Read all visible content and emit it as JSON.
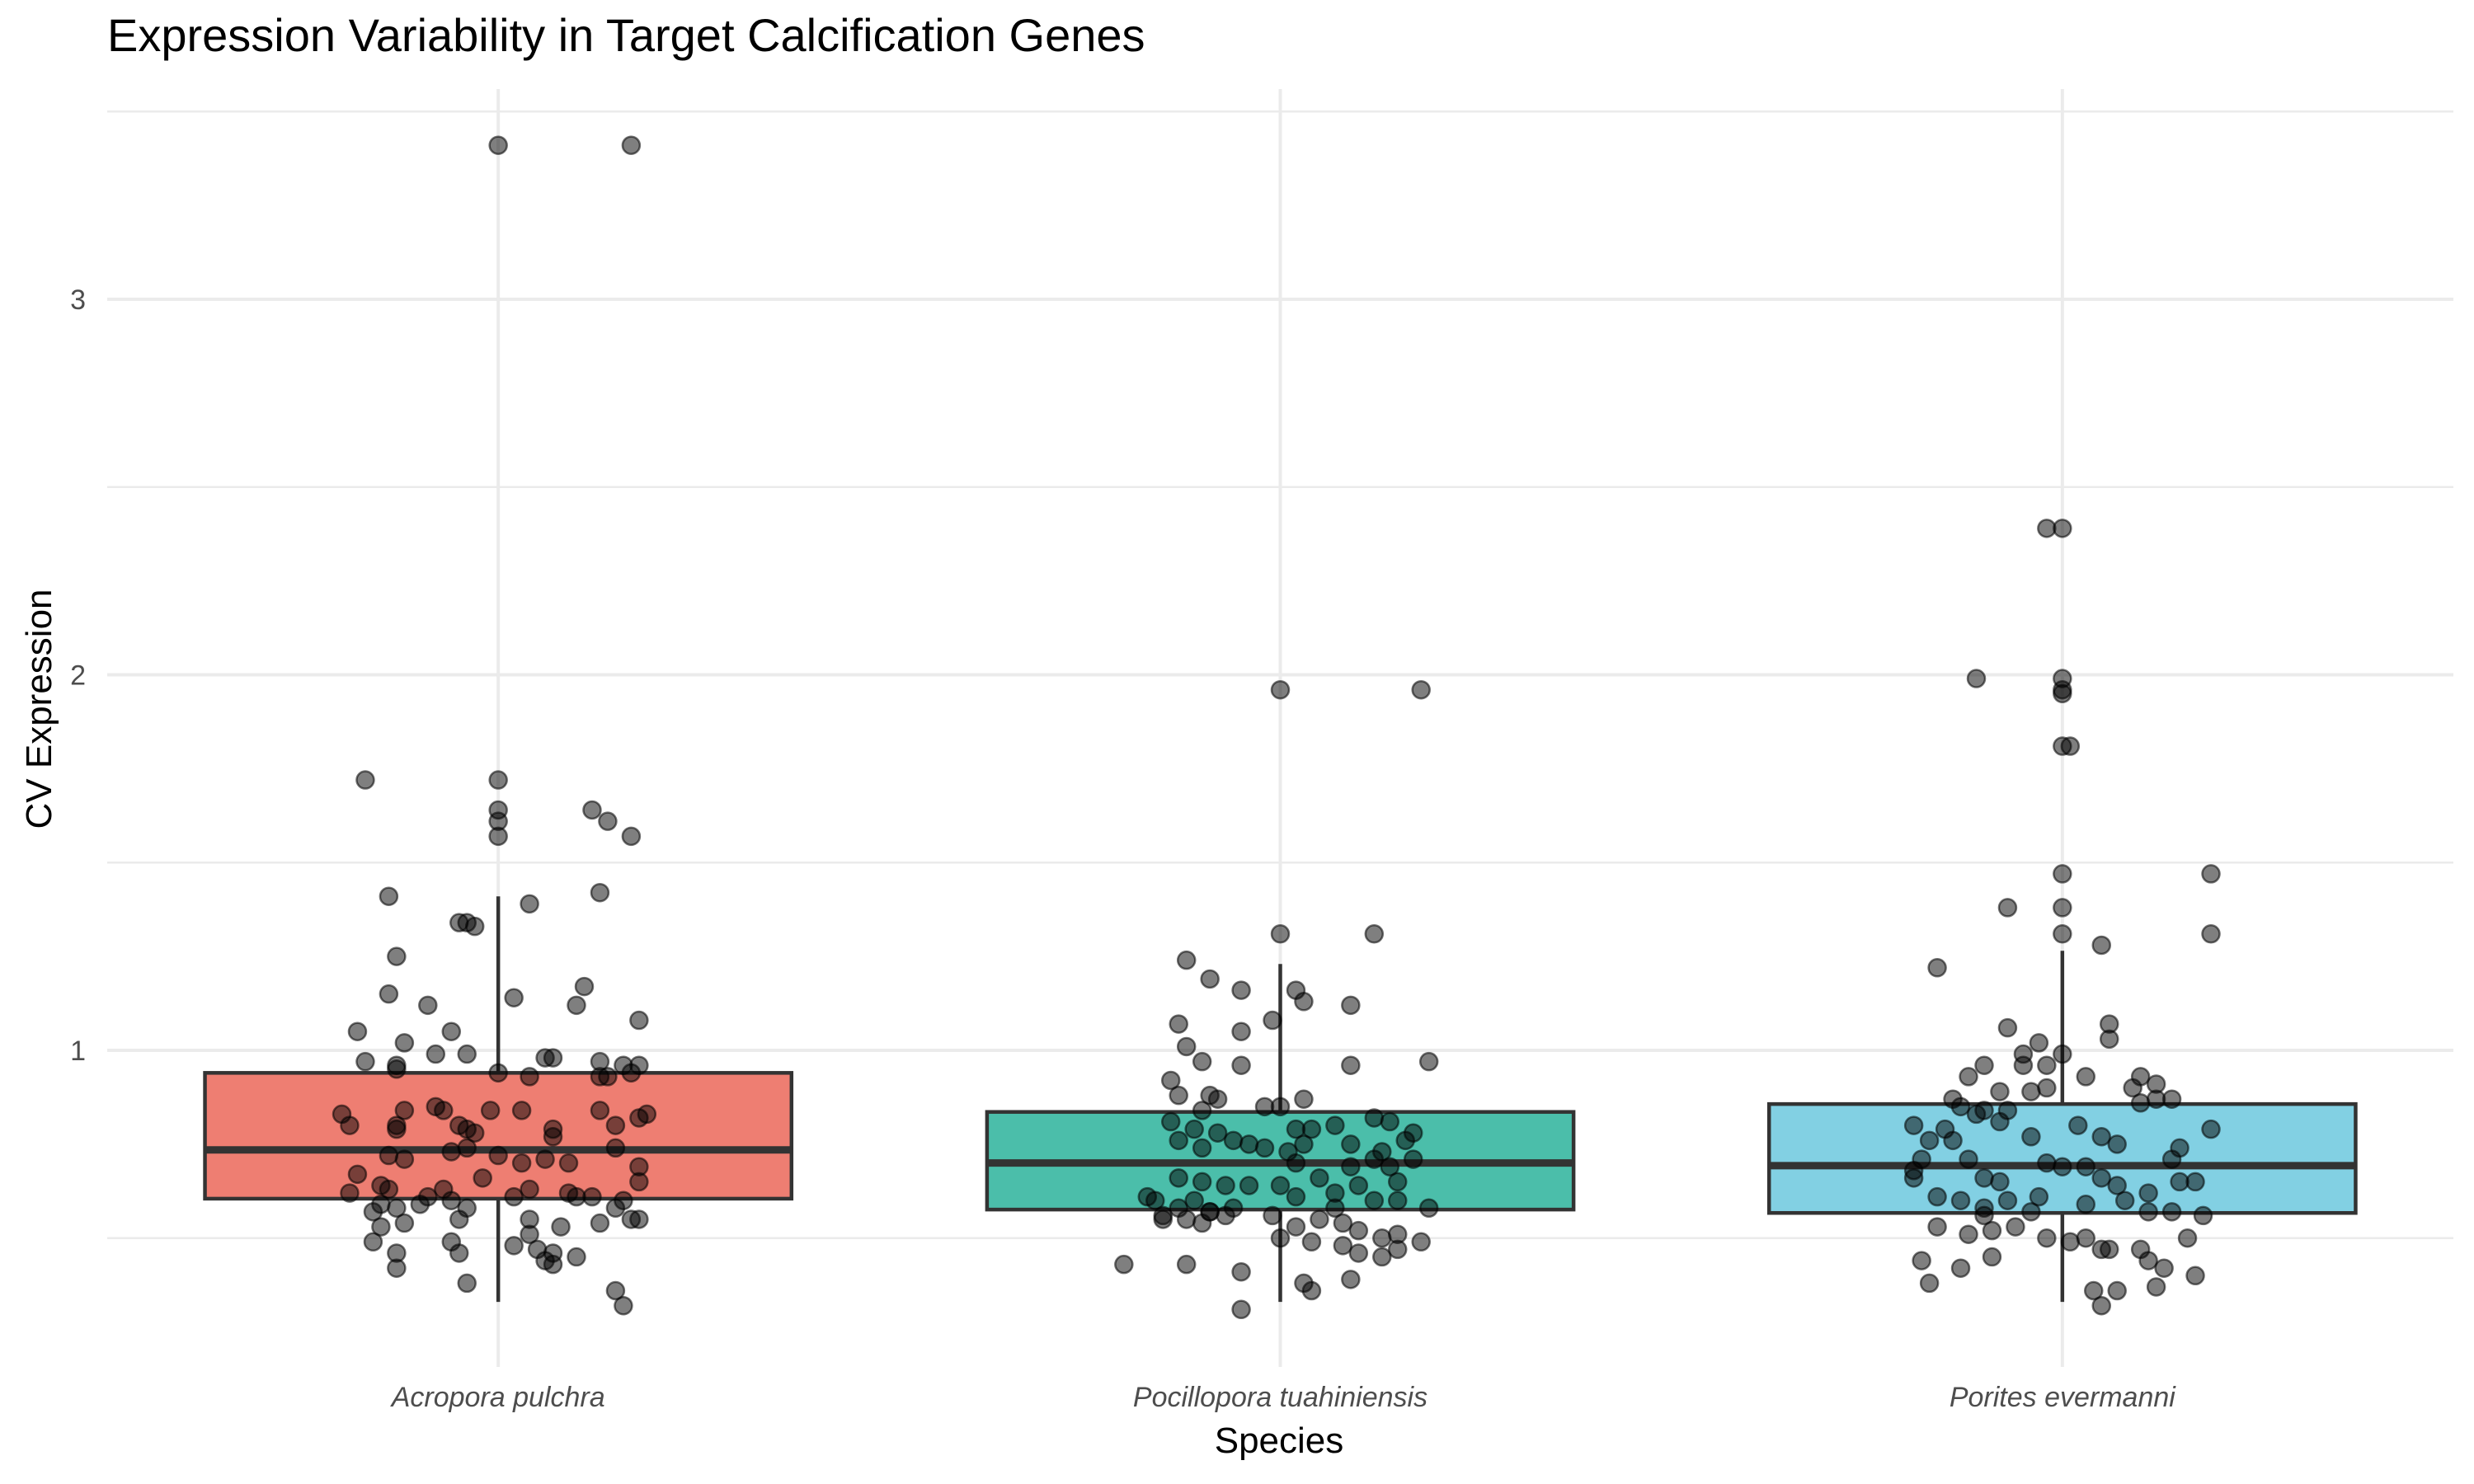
{
  "chart_data": {
    "type": "boxplot",
    "title": "Expression Variability in Target Calcification Genes",
    "xlabel": "Species",
    "ylabel": "CV Expression",
    "ylim": [
      0.15,
      3.62
    ],
    "yticks": [
      1,
      2,
      3
    ],
    "ytick_labels": [
      "1",
      "2",
      "3"
    ],
    "y_minor_gridlines": [
      0.5,
      1.5,
      2.5,
      3.5
    ],
    "grid": true,
    "legend": "none",
    "categories": [
      "Acropora pulchra",
      "Pocillopora tuahiniensis",
      "Porites evermanni"
    ],
    "colors": [
      "#ee7e72",
      "#4bbeaa",
      "#82d0e3"
    ],
    "boxes": [
      {
        "name": "Acropora pulchra",
        "whisker_low": 0.33,
        "q1": 0.605,
        "median": 0.735,
        "q3": 0.94,
        "whisker_high": 1.41
      },
      {
        "name": "Pocillopora tuahiniensis",
        "whisker_low": 0.33,
        "q1": 0.576,
        "median": 0.7,
        "q3": 0.836,
        "whisker_high": 1.23
      },
      {
        "name": "Porites evermanni",
        "whisker_low": 0.33,
        "q1": 0.567,
        "median": 0.693,
        "q3": 0.857,
        "whisker_high": 1.265
      }
    ],
    "points": [
      [
        [
          0.0,
          3.41
        ],
        [
          0.17,
          3.41
        ],
        [
          -0.17,
          1.72
        ],
        [
          0.0,
          1.72
        ],
        [
          0.0,
          1.64
        ],
        [
          0.0,
          1.61
        ],
        [
          0.0,
          1.57
        ],
        [
          0.12,
          1.64
        ],
        [
          0.14,
          1.61
        ],
        [
          0.17,
          1.57
        ],
        [
          -0.14,
          1.41
        ],
        [
          0.04,
          1.39
        ],
        [
          0.13,
          1.42
        ],
        [
          -0.05,
          1.34
        ],
        [
          -0.04,
          1.34
        ],
        [
          -0.03,
          1.33
        ],
        [
          -0.13,
          1.25
        ],
        [
          -0.14,
          1.15
        ],
        [
          -0.09,
          1.12
        ],
        [
          0.02,
          1.14
        ],
        [
          0.11,
          1.17
        ],
        [
          0.1,
          1.12
        ],
        [
          0.18,
          1.08
        ],
        [
          -0.18,
          1.05
        ],
        [
          -0.12,
          1.02
        ],
        [
          -0.06,
          1.05
        ],
        [
          -0.17,
          0.97
        ],
        [
          -0.13,
          0.96
        ],
        [
          -0.13,
          0.95
        ],
        [
          -0.08,
          0.99
        ],
        [
          -0.04,
          0.99
        ],
        [
          0.06,
          0.98
        ],
        [
          0.07,
          0.98
        ],
        [
          0.13,
          0.97
        ],
        [
          0.16,
          0.96
        ],
        [
          0.18,
          0.96
        ],
        [
          0.17,
          0.94
        ],
        [
          0.13,
          0.93
        ],
        [
          0.14,
          0.93
        ],
        [
          0.0,
          0.94
        ],
        [
          0.04,
          0.93
        ],
        [
          -0.2,
          0.83
        ],
        [
          -0.19,
          0.8
        ],
        [
          -0.13,
          0.8
        ],
        [
          -0.13,
          0.79
        ],
        [
          -0.12,
          0.84
        ],
        [
          -0.08,
          0.85
        ],
        [
          -0.07,
          0.84
        ],
        [
          -0.05,
          0.8
        ],
        [
          -0.04,
          0.79
        ],
        [
          -0.03,
          0.78
        ],
        [
          -0.01,
          0.84
        ],
        [
          0.03,
          0.84
        ],
        [
          0.07,
          0.79
        ],
        [
          0.07,
          0.77
        ],
        [
          0.13,
          0.84
        ],
        [
          0.15,
          0.8
        ],
        [
          0.18,
          0.82
        ],
        [
          0.19,
          0.83
        ],
        [
          -0.14,
          0.72
        ],
        [
          -0.12,
          0.71
        ],
        [
          -0.06,
          0.73
        ],
        [
          -0.04,
          0.74
        ],
        [
          0.0,
          0.72
        ],
        [
          0.03,
          0.7
        ],
        [
          0.06,
          0.71
        ],
        [
          0.09,
          0.7
        ],
        [
          0.15,
          0.74
        ],
        [
          0.18,
          0.69
        ],
        [
          -0.18,
          0.67
        ],
        [
          -0.15,
          0.64
        ],
        [
          -0.14,
          0.63
        ],
        [
          -0.09,
          0.61
        ],
        [
          -0.07,
          0.63
        ],
        [
          -0.06,
          0.6
        ],
        [
          -0.02,
          0.66
        ],
        [
          0.04,
          0.63
        ],
        [
          0.09,
          0.62
        ],
        [
          0.12,
          0.61
        ],
        [
          0.16,
          0.6
        ],
        [
          0.18,
          0.65
        ],
        [
          -0.19,
          0.62
        ],
        [
          -0.15,
          0.59
        ],
        [
          -0.13,
          0.58
        ],
        [
          -0.1,
          0.59
        ],
        [
          -0.04,
          0.58
        ],
        [
          0.02,
          0.61
        ],
        [
          0.1,
          0.61
        ],
        [
          0.15,
          0.58
        ],
        [
          0.17,
          0.55
        ],
        [
          -0.16,
          0.57
        ],
        [
          -0.15,
          0.53
        ],
        [
          -0.12,
          0.54
        ],
        [
          -0.05,
          0.55
        ],
        [
          0.04,
          0.55
        ],
        [
          0.08,
          0.53
        ],
        [
          0.13,
          0.54
        ],
        [
          0.18,
          0.55
        ],
        [
          -0.16,
          0.49
        ],
        [
          -0.13,
          0.46
        ],
        [
          -0.06,
          0.49
        ],
        [
          -0.05,
          0.46
        ],
        [
          0.05,
          0.47
        ],
        [
          0.07,
          0.46
        ],
        [
          0.06,
          0.44
        ],
        [
          0.07,
          0.43
        ],
        [
          0.1,
          0.45
        ],
        [
          -0.13,
          0.42
        ],
        [
          -0.04,
          0.38
        ],
        [
          0.15,
          0.36
        ],
        [
          0.16,
          0.32
        ],
        [
          0.02,
          0.48
        ],
        [
          0.04,
          0.51
        ]
      ],
      [
        [
          0.0,
          1.96
        ],
        [
          0.18,
          1.96
        ],
        [
          -0.12,
          1.24
        ],
        [
          -0.09,
          1.19
        ],
        [
          0.0,
          1.31
        ],
        [
          0.12,
          1.31
        ],
        [
          -0.05,
          1.16
        ],
        [
          0.02,
          1.16
        ],
        [
          0.03,
          1.13
        ],
        [
          0.09,
          1.12
        ],
        [
          -0.01,
          1.08
        ],
        [
          -0.05,
          1.05
        ],
        [
          0.09,
          0.96
        ],
        [
          0.19,
          0.97
        ],
        [
          -0.13,
          1.07
        ],
        [
          -0.12,
          1.01
        ],
        [
          -0.05,
          0.96
        ],
        [
          -0.1,
          0.97
        ],
        [
          -0.14,
          0.92
        ],
        [
          -0.13,
          0.88
        ],
        [
          -0.09,
          0.88
        ],
        [
          -0.08,
          0.87
        ],
        [
          -0.02,
          0.85
        ],
        [
          0.0,
          0.85
        ],
        [
          0.03,
          0.87
        ],
        [
          -0.1,
          0.84
        ],
        [
          -0.14,
          0.81
        ],
        [
          -0.11,
          0.79
        ],
        [
          -0.08,
          0.78
        ],
        [
          -0.06,
          0.76
        ],
        [
          -0.04,
          0.75
        ],
        [
          0.02,
          0.79
        ],
        [
          0.04,
          0.79
        ],
        [
          0.07,
          0.8
        ],
        [
          0.12,
          0.82
        ],
        [
          0.14,
          0.81
        ],
        [
          0.17,
          0.78
        ],
        [
          0.16,
          0.76
        ],
        [
          -0.13,
          0.76
        ],
        [
          -0.1,
          0.74
        ],
        [
          -0.02,
          0.74
        ],
        [
          0.01,
          0.73
        ],
        [
          0.03,
          0.75
        ],
        [
          0.09,
          0.75
        ],
        [
          0.13,
          0.73
        ],
        [
          0.12,
          0.71
        ],
        [
          0.17,
          0.71
        ],
        [
          0.02,
          0.7
        ],
        [
          0.09,
          0.69
        ],
        [
          0.14,
          0.69
        ],
        [
          -0.13,
          0.66
        ],
        [
          -0.1,
          0.65
        ],
        [
          -0.07,
          0.64
        ],
        [
          -0.04,
          0.64
        ],
        [
          0.0,
          0.64
        ],
        [
          0.05,
          0.66
        ],
        [
          0.1,
          0.64
        ],
        [
          0.15,
          0.65
        ],
        [
          -0.17,
          0.61
        ],
        [
          -0.16,
          0.6
        ],
        [
          -0.13,
          0.58
        ],
        [
          -0.11,
          0.6
        ],
        [
          -0.09,
          0.57
        ],
        [
          -0.06,
          0.58
        ],
        [
          0.02,
          0.61
        ],
        [
          0.07,
          0.58
        ],
        [
          0.12,
          0.6
        ],
        [
          0.15,
          0.6
        ],
        [
          -0.15,
          0.55
        ],
        [
          -0.12,
          0.55
        ],
        [
          -0.1,
          0.54
        ],
        [
          -0.07,
          0.56
        ],
        [
          -0.01,
          0.56
        ],
        [
          0.02,
          0.53
        ],
        [
          0.05,
          0.55
        ],
        [
          0.08,
          0.54
        ],
        [
          0.1,
          0.52
        ],
        [
          0.13,
          0.5
        ],
        [
          0.15,
          0.51
        ],
        [
          -0.15,
          0.56
        ],
        [
          0.0,
          0.5
        ],
        [
          0.04,
          0.49
        ],
        [
          0.08,
          0.48
        ],
        [
          0.1,
          0.46
        ],
        [
          0.13,
          0.45
        ],
        [
          0.15,
          0.47
        ],
        [
          0.19,
          0.58
        ],
        [
          -0.2,
          0.43
        ],
        [
          -0.12,
          0.43
        ],
        [
          -0.05,
          0.41
        ],
        [
          0.04,
          0.36
        ],
        [
          0.03,
          0.38
        ],
        [
          0.09,
          0.39
        ],
        [
          -0.05,
          0.31
        ],
        [
          -0.09,
          0.57
        ],
        [
          0.07,
          0.62
        ],
        [
          0.18,
          0.49
        ]
      ],
      [
        [
          -0.02,
          2.39
        ],
        [
          0.0,
          2.39
        ],
        [
          -0.11,
          1.99
        ],
        [
          0.0,
          1.99
        ],
        [
          0.0,
          1.96
        ],
        [
          0.0,
          1.95
        ],
        [
          0.0,
          1.81
        ],
        [
          0.01,
          1.81
        ],
        [
          0.0,
          1.47
        ],
        [
          0.19,
          1.47
        ],
        [
          -0.07,
          1.38
        ],
        [
          0.0,
          1.38
        ],
        [
          0.0,
          1.31
        ],
        [
          0.05,
          1.28
        ],
        [
          0.19,
          1.31
        ],
        [
          -0.16,
          1.22
        ],
        [
          -0.07,
          1.06
        ],
        [
          0.06,
          1.07
        ],
        [
          0.06,
          1.03
        ],
        [
          -0.05,
          0.99
        ],
        [
          -0.03,
          1.02
        ],
        [
          -0.1,
          0.96
        ],
        [
          -0.05,
          0.96
        ],
        [
          -0.02,
          0.96
        ],
        [
          0.0,
          0.99
        ],
        [
          0.03,
          0.93
        ],
        [
          -0.12,
          0.93
        ],
        [
          -0.08,
          0.89
        ],
        [
          -0.04,
          0.89
        ],
        [
          -0.02,
          0.9
        ],
        [
          0.1,
          0.93
        ],
        [
          0.09,
          0.9
        ],
        [
          0.12,
          0.91
        ],
        [
          0.14,
          0.87
        ],
        [
          -0.14,
          0.87
        ],
        [
          -0.13,
          0.85
        ],
        [
          -0.11,
          0.83
        ],
        [
          -0.1,
          0.84
        ],
        [
          -0.07,
          0.84
        ],
        [
          -0.15,
          0.79
        ],
        [
          -0.19,
          0.8
        ],
        [
          -0.17,
          0.76
        ],
        [
          -0.14,
          0.76
        ],
        [
          -0.08,
          0.81
        ],
        [
          -0.04,
          0.77
        ],
        [
          0.02,
          0.8
        ],
        [
          0.05,
          0.77
        ],
        [
          0.07,
          0.75
        ],
        [
          0.1,
          0.86
        ],
        [
          0.12,
          0.87
        ],
        [
          0.19,
          0.79
        ],
        [
          0.15,
          0.74
        ],
        [
          0.14,
          0.71
        ],
        [
          -0.12,
          0.71
        ],
        [
          -0.18,
          0.71
        ],
        [
          -0.19,
          0.68
        ],
        [
          -0.19,
          0.66
        ],
        [
          -0.1,
          0.66
        ],
        [
          -0.08,
          0.65
        ],
        [
          -0.02,
          0.7
        ],
        [
          0.0,
          0.69
        ],
        [
          0.03,
          0.69
        ],
        [
          0.05,
          0.66
        ],
        [
          0.07,
          0.64
        ],
        [
          0.11,
          0.62
        ],
        [
          0.15,
          0.65
        ],
        [
          0.17,
          0.65
        ],
        [
          -0.16,
          0.61
        ],
        [
          -0.13,
          0.6
        ],
        [
          -0.1,
          0.58
        ],
        [
          -0.07,
          0.6
        ],
        [
          -0.03,
          0.61
        ],
        [
          0.03,
          0.59
        ],
        [
          0.08,
          0.6
        ],
        [
          0.11,
          0.57
        ],
        [
          0.14,
          0.57
        ],
        [
          0.18,
          0.56
        ],
        [
          -0.16,
          0.53
        ],
        [
          -0.12,
          0.51
        ],
        [
          -0.09,
          0.52
        ],
        [
          -0.06,
          0.53
        ],
        [
          -0.02,
          0.5
        ],
        [
          0.01,
          0.49
        ],
        [
          0.03,
          0.5
        ],
        [
          0.05,
          0.47
        ],
        [
          0.06,
          0.47
        ],
        [
          0.1,
          0.47
        ],
        [
          0.11,
          0.44
        ],
        [
          0.13,
          0.42
        ],
        [
          0.16,
          0.5
        ],
        [
          -0.18,
          0.44
        ],
        [
          -0.13,
          0.42
        ],
        [
          -0.09,
          0.45
        ],
        [
          -0.17,
          0.38
        ],
        [
          0.04,
          0.36
        ],
        [
          0.05,
          0.32
        ],
        [
          0.07,
          0.36
        ],
        [
          0.12,
          0.37
        ],
        [
          0.17,
          0.4
        ],
        [
          -0.1,
          0.56
        ],
        [
          -0.04,
          0.57
        ]
      ]
    ]
  }
}
